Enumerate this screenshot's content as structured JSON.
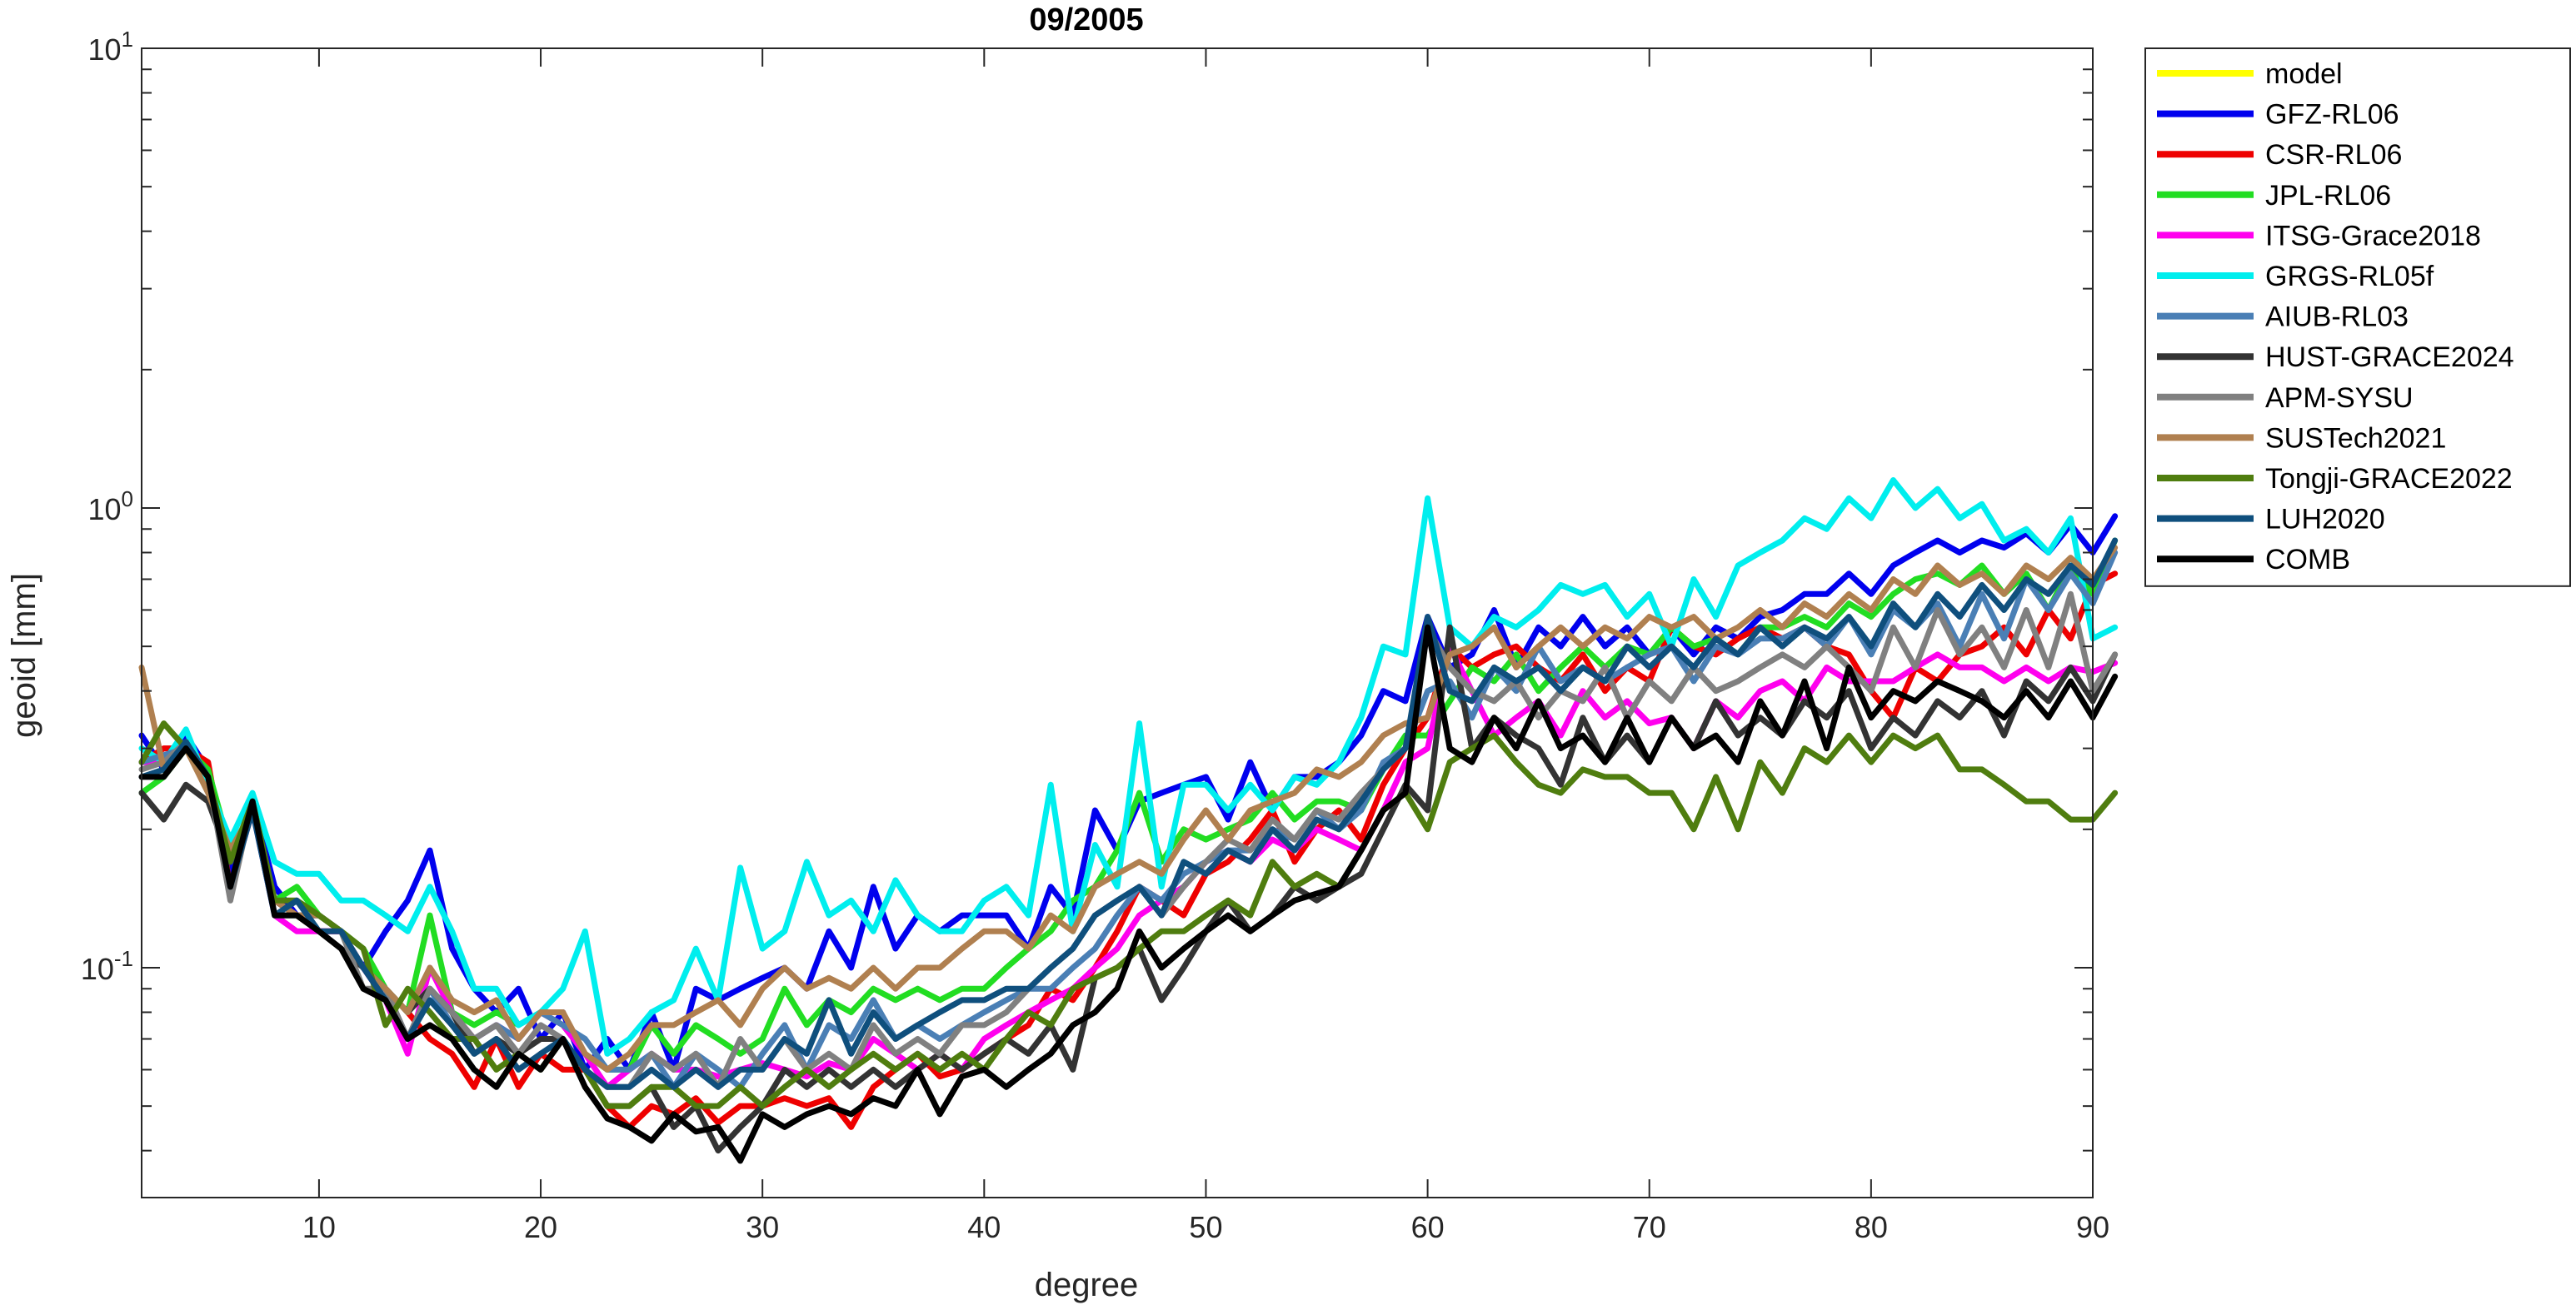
{
  "chart_data": {
    "type": "line",
    "title": "09/2005",
    "xlabel": "degree",
    "ylabel": "geoid [mm]",
    "xlim": [
      2,
      90
    ],
    "ylim": [
      0.03162,
      10
    ],
    "yscale": "log",
    "xticks": [
      10,
      20,
      30,
      40,
      50,
      60,
      70,
      80,
      90
    ],
    "xtick_labels": [
      "10",
      "20",
      "30",
      "40",
      "50",
      "60",
      "70",
      "80",
      "90"
    ],
    "yticks": [
      0.1,
      1,
      10
    ],
    "ytick_labels": [
      {
        "base": "10",
        "exp": "-1"
      },
      {
        "base": "10",
        "exp": "0"
      },
      {
        "base": "10",
        "exp": "1"
      }
    ],
    "grid": false,
    "legend_position": "outside-right",
    "x_start": 2,
    "series": [
      {
        "name": "model",
        "color": "#ffff00",
        "values": []
      },
      {
        "name": "GFZ-RL06",
        "color": "#0000ee",
        "values": [
          0.32,
          0.27,
          0.32,
          0.27,
          0.16,
          0.23,
          0.15,
          0.13,
          0.13,
          0.12,
          0.1,
          0.12,
          0.14,
          0.18,
          0.11,
          0.09,
          0.08,
          0.09,
          0.07,
          0.08,
          0.06,
          0.07,
          0.06,
          0.08,
          0.06,
          0.09,
          0.085,
          0.09,
          0.095,
          0.1,
          0.09,
          0.12,
          0.1,
          0.15,
          0.11,
          0.13,
          0.12,
          0.13,
          0.13,
          0.13,
          0.11,
          0.15,
          0.13,
          0.22,
          0.18,
          0.23,
          0.24,
          0.25,
          0.26,
          0.21,
          0.28,
          0.22,
          0.26,
          0.26,
          0.28,
          0.32,
          0.4,
          0.38,
          0.58,
          0.45,
          0.48,
          0.6,
          0.45,
          0.55,
          0.5,
          0.58,
          0.5,
          0.55,
          0.48,
          0.55,
          0.48,
          0.55,
          0.52,
          0.58,
          0.6,
          0.65,
          0.65,
          0.72,
          0.65,
          0.75,
          0.8,
          0.85,
          0.8,
          0.85,
          0.82,
          0.88,
          0.8,
          0.92,
          0.8,
          0.96
        ]
      },
      {
        "name": "CSR-RL06",
        "color": "#ee0000",
        "values": [
          0.28,
          0.3,
          0.3,
          0.28,
          0.15,
          0.22,
          0.14,
          0.13,
          0.12,
          0.12,
          0.1,
          0.09,
          0.08,
          0.07,
          0.065,
          0.055,
          0.07,
          0.055,
          0.065,
          0.06,
          0.06,
          0.05,
          0.045,
          0.05,
          0.048,
          0.052,
          0.046,
          0.05,
          0.05,
          0.052,
          0.05,
          0.052,
          0.045,
          0.055,
          0.06,
          0.065,
          0.058,
          0.06,
          0.065,
          0.07,
          0.075,
          0.09,
          0.085,
          0.1,
          0.12,
          0.15,
          0.14,
          0.13,
          0.16,
          0.17,
          0.19,
          0.22,
          0.17,
          0.2,
          0.22,
          0.19,
          0.25,
          0.3,
          0.35,
          0.5,
          0.45,
          0.48,
          0.5,
          0.45,
          0.42,
          0.48,
          0.4,
          0.45,
          0.42,
          0.55,
          0.5,
          0.48,
          0.52,
          0.55,
          0.52,
          0.55,
          0.5,
          0.48,
          0.4,
          0.35,
          0.45,
          0.42,
          0.48,
          0.5,
          0.55,
          0.48,
          0.6,
          0.52,
          0.68,
          0.72
        ]
      },
      {
        "name": "JPL-RL06",
        "color": "#22dd22",
        "values": [
          0.24,
          0.26,
          0.3,
          0.27,
          0.18,
          0.22,
          0.14,
          0.15,
          0.13,
          0.12,
          0.11,
          0.09,
          0.08,
          0.13,
          0.08,
          0.075,
          0.08,
          0.075,
          0.08,
          0.075,
          0.065,
          0.06,
          0.06,
          0.075,
          0.065,
          0.075,
          0.07,
          0.065,
          0.07,
          0.09,
          0.075,
          0.085,
          0.08,
          0.09,
          0.085,
          0.09,
          0.085,
          0.09,
          0.09,
          0.1,
          0.11,
          0.12,
          0.14,
          0.15,
          0.18,
          0.24,
          0.17,
          0.2,
          0.19,
          0.2,
          0.21,
          0.24,
          0.21,
          0.23,
          0.23,
          0.22,
          0.27,
          0.32,
          0.32,
          0.38,
          0.45,
          0.42,
          0.48,
          0.4,
          0.45,
          0.5,
          0.45,
          0.5,
          0.48,
          0.55,
          0.5,
          0.52,
          0.48,
          0.55,
          0.55,
          0.58,
          0.55,
          0.62,
          0.58,
          0.65,
          0.7,
          0.72,
          0.68,
          0.75,
          0.65,
          0.72,
          0.6,
          0.75,
          0.65,
          0.85
        ]
      },
      {
        "name": "ITSG-Grace2018",
        "color": "#ff00ee",
        "values": [
          0.28,
          0.28,
          0.3,
          0.25,
          0.15,
          0.22,
          0.13,
          0.12,
          0.12,
          0.12,
          0.1,
          0.085,
          0.065,
          0.1,
          0.08,
          0.07,
          0.075,
          0.07,
          0.08,
          0.075,
          0.065,
          0.055,
          0.06,
          0.065,
          0.06,
          0.06,
          0.058,
          0.06,
          0.062,
          0.06,
          0.058,
          0.062,
          0.06,
          0.07,
          0.065,
          0.06,
          0.065,
          0.06,
          0.07,
          0.075,
          0.08,
          0.085,
          0.09,
          0.1,
          0.11,
          0.13,
          0.14,
          0.15,
          0.17,
          0.18,
          0.17,
          0.19,
          0.18,
          0.2,
          0.19,
          0.18,
          0.22,
          0.28,
          0.3,
          0.5,
          0.4,
          0.32,
          0.35,
          0.38,
          0.32,
          0.4,
          0.35,
          0.38,
          0.34,
          0.35,
          0.3,
          0.38,
          0.35,
          0.4,
          0.42,
          0.38,
          0.45,
          0.42,
          0.42,
          0.42,
          0.45,
          0.48,
          0.45,
          0.45,
          0.42,
          0.45,
          0.42,
          0.45,
          0.44,
          0.46
        ]
      },
      {
        "name": "GRGS-RL05f",
        "color": "#00eeee",
        "values": [
          0.3,
          0.28,
          0.33,
          0.25,
          0.19,
          0.24,
          0.17,
          0.16,
          0.16,
          0.14,
          0.14,
          0.13,
          0.12,
          0.15,
          0.12,
          0.09,
          0.09,
          0.075,
          0.08,
          0.09,
          0.12,
          0.065,
          0.07,
          0.08,
          0.085,
          0.11,
          0.085,
          0.165,
          0.11,
          0.12,
          0.17,
          0.13,
          0.14,
          0.12,
          0.155,
          0.13,
          0.12,
          0.12,
          0.14,
          0.15,
          0.13,
          0.25,
          0.12,
          0.185,
          0.15,
          0.34,
          0.15,
          0.25,
          0.25,
          0.22,
          0.25,
          0.22,
          0.26,
          0.25,
          0.28,
          0.35,
          0.5,
          0.48,
          1.05,
          0.55,
          0.5,
          0.58,
          0.55,
          0.6,
          0.68,
          0.65,
          0.68,
          0.58,
          0.65,
          0.5,
          0.7,
          0.58,
          0.75,
          0.8,
          0.85,
          0.95,
          0.9,
          1.05,
          0.95,
          1.15,
          1.0,
          1.1,
          0.95,
          1.02,
          0.85,
          0.9,
          0.8,
          0.95,
          0.52,
          0.55
        ]
      },
      {
        "name": "AIUB-RL03",
        "color": "#4a7fb5",
        "values": [
          0.28,
          0.29,
          0.3,
          0.26,
          0.15,
          0.22,
          0.13,
          0.13,
          0.13,
          0.12,
          0.1,
          0.09,
          0.07,
          0.09,
          0.075,
          0.07,
          0.075,
          0.07,
          0.08,
          0.075,
          0.07,
          0.06,
          0.06,
          0.065,
          0.055,
          0.065,
          0.06,
          0.055,
          0.065,
          0.075,
          0.06,
          0.075,
          0.07,
          0.085,
          0.07,
          0.075,
          0.07,
          0.075,
          0.08,
          0.085,
          0.09,
          0.09,
          0.1,
          0.11,
          0.13,
          0.15,
          0.14,
          0.16,
          0.17,
          0.18,
          0.18,
          0.2,
          0.19,
          0.22,
          0.2,
          0.22,
          0.28,
          0.3,
          0.4,
          0.42,
          0.35,
          0.45,
          0.4,
          0.5,
          0.42,
          0.45,
          0.42,
          0.45,
          0.48,
          0.5,
          0.42,
          0.5,
          0.48,
          0.52,
          0.52,
          0.55,
          0.5,
          0.58,
          0.48,
          0.6,
          0.55,
          0.62,
          0.5,
          0.65,
          0.52,
          0.7,
          0.6,
          0.72,
          0.62,
          0.8
        ]
      },
      {
        "name": "HUST-GRACE2024",
        "color": "#333333",
        "values": [
          0.24,
          0.21,
          0.25,
          0.23,
          0.17,
          0.23,
          0.14,
          0.13,
          0.12,
          0.11,
          0.1,
          0.09,
          0.08,
          0.09,
          0.08,
          0.065,
          0.07,
          0.065,
          0.07,
          0.07,
          0.06,
          0.05,
          0.05,
          0.055,
          0.045,
          0.05,
          0.04,
          0.045,
          0.05,
          0.06,
          0.055,
          0.06,
          0.055,
          0.06,
          0.055,
          0.06,
          0.065,
          0.06,
          0.065,
          0.07,
          0.065,
          0.075,
          0.06,
          0.095,
          0.1,
          0.11,
          0.085,
          0.1,
          0.12,
          0.14,
          0.12,
          0.13,
          0.15,
          0.14,
          0.15,
          0.16,
          0.2,
          0.25,
          0.22,
          0.55,
          0.3,
          0.35,
          0.32,
          0.3,
          0.25,
          0.35,
          0.28,
          0.32,
          0.28,
          0.35,
          0.3,
          0.38,
          0.32,
          0.35,
          0.32,
          0.38,
          0.35,
          0.4,
          0.3,
          0.35,
          0.32,
          0.38,
          0.35,
          0.4,
          0.32,
          0.42,
          0.38,
          0.45,
          0.38,
          0.48
        ]
      },
      {
        "name": "APM-SYSU",
        "color": "#808080",
        "values": [
          0.27,
          0.28,
          0.31,
          0.26,
          0.14,
          0.23,
          0.13,
          0.13,
          0.13,
          0.12,
          0.09,
          0.09,
          0.07,
          0.09,
          0.08,
          0.07,
          0.075,
          0.065,
          0.075,
          0.07,
          0.06,
          0.055,
          0.055,
          0.065,
          0.06,
          0.065,
          0.055,
          0.07,
          0.06,
          0.07,
          0.06,
          0.065,
          0.06,
          0.075,
          0.065,
          0.07,
          0.065,
          0.075,
          0.075,
          0.08,
          0.09,
          0.1,
          0.11,
          0.13,
          0.14,
          0.15,
          0.13,
          0.15,
          0.17,
          0.19,
          0.18,
          0.21,
          0.19,
          0.22,
          0.21,
          0.24,
          0.27,
          0.3,
          0.55,
          0.45,
          0.4,
          0.38,
          0.42,
          0.35,
          0.4,
          0.38,
          0.45,
          0.35,
          0.42,
          0.38,
          0.45,
          0.4,
          0.42,
          0.45,
          0.48,
          0.45,
          0.5,
          0.45,
          0.4,
          0.55,
          0.45,
          0.6,
          0.48,
          0.55,
          0.45,
          0.6,
          0.45,
          0.65,
          0.4,
          0.48
        ]
      },
      {
        "name": "SUSTech2021",
        "color": "#b08050",
        "values": [
          0.45,
          0.27,
          0.3,
          0.24,
          0.18,
          0.22,
          0.14,
          0.13,
          0.13,
          0.12,
          0.1,
          0.09,
          0.08,
          0.1,
          0.085,
          0.08,
          0.085,
          0.07,
          0.08,
          0.08,
          0.065,
          0.06,
          0.065,
          0.075,
          0.075,
          0.08,
          0.085,
          0.075,
          0.09,
          0.1,
          0.09,
          0.095,
          0.09,
          0.1,
          0.09,
          0.1,
          0.1,
          0.11,
          0.12,
          0.12,
          0.11,
          0.13,
          0.12,
          0.15,
          0.16,
          0.17,
          0.16,
          0.19,
          0.22,
          0.19,
          0.22,
          0.23,
          0.24,
          0.27,
          0.26,
          0.28,
          0.32,
          0.34,
          0.35,
          0.48,
          0.5,
          0.55,
          0.45,
          0.5,
          0.55,
          0.5,
          0.55,
          0.52,
          0.58,
          0.55,
          0.58,
          0.52,
          0.55,
          0.6,
          0.55,
          0.62,
          0.58,
          0.65,
          0.6,
          0.7,
          0.65,
          0.75,
          0.68,
          0.72,
          0.65,
          0.75,
          0.7,
          0.78,
          0.7,
          0.82
        ]
      },
      {
        "name": "Tongji-GRACE2022",
        "color": "#4f7d0f",
        "values": [
          0.28,
          0.34,
          0.3,
          0.26,
          0.17,
          0.23,
          0.14,
          0.14,
          0.13,
          0.12,
          0.11,
          0.075,
          0.09,
          0.08,
          0.07,
          0.07,
          0.06,
          0.065,
          0.06,
          0.07,
          0.06,
          0.05,
          0.05,
          0.055,
          0.055,
          0.05,
          0.05,
          0.055,
          0.05,
          0.055,
          0.06,
          0.055,
          0.06,
          0.065,
          0.06,
          0.065,
          0.06,
          0.065,
          0.06,
          0.07,
          0.08,
          0.075,
          0.09,
          0.095,
          0.1,
          0.11,
          0.12,
          0.12,
          0.13,
          0.14,
          0.13,
          0.17,
          0.15,
          0.16,
          0.15,
          0.18,
          0.22,
          0.24,
          0.2,
          0.28,
          0.3,
          0.32,
          0.28,
          0.25,
          0.24,
          0.27,
          0.26,
          0.26,
          0.24,
          0.24,
          0.2,
          0.26,
          0.2,
          0.28,
          0.24,
          0.3,
          0.28,
          0.32,
          0.28,
          0.32,
          0.3,
          0.32,
          0.27,
          0.27,
          0.25,
          0.23,
          0.23,
          0.21,
          0.21,
          0.24
        ]
      },
      {
        "name": "LUH2020",
        "color": "#0f4f7d",
        "values": [
          0.26,
          0.27,
          0.31,
          0.26,
          0.15,
          0.22,
          0.13,
          0.14,
          0.12,
          0.12,
          0.1,
          0.085,
          0.07,
          0.085,
          0.075,
          0.065,
          0.07,
          0.06,
          0.065,
          0.07,
          0.06,
          0.055,
          0.055,
          0.06,
          0.055,
          0.06,
          0.055,
          0.06,
          0.06,
          0.07,
          0.065,
          0.085,
          0.065,
          0.08,
          0.07,
          0.075,
          0.08,
          0.085,
          0.085,
          0.09,
          0.09,
          0.1,
          0.11,
          0.13,
          0.14,
          0.15,
          0.13,
          0.17,
          0.16,
          0.18,
          0.17,
          0.2,
          0.18,
          0.21,
          0.2,
          0.23,
          0.27,
          0.3,
          0.58,
          0.4,
          0.38,
          0.45,
          0.42,
          0.45,
          0.4,
          0.45,
          0.42,
          0.5,
          0.45,
          0.5,
          0.45,
          0.52,
          0.48,
          0.55,
          0.5,
          0.55,
          0.52,
          0.58,
          0.5,
          0.62,
          0.55,
          0.65,
          0.58,
          0.68,
          0.6,
          0.7,
          0.65,
          0.75,
          0.68,
          0.85
        ]
      },
      {
        "name": "COMB",
        "color": "#000000",
        "values": [
          0.26,
          0.26,
          0.3,
          0.26,
          0.15,
          0.23,
          0.13,
          0.13,
          0.12,
          0.11,
          0.09,
          0.085,
          0.07,
          0.075,
          0.07,
          0.06,
          0.055,
          0.065,
          0.06,
          0.07,
          0.055,
          0.047,
          0.045,
          0.042,
          0.048,
          0.044,
          0.045,
          0.038,
          0.048,
          0.045,
          0.048,
          0.05,
          0.048,
          0.052,
          0.05,
          0.06,
          0.048,
          0.058,
          0.06,
          0.055,
          0.06,
          0.065,
          0.075,
          0.08,
          0.09,
          0.12,
          0.1,
          0.11,
          0.12,
          0.13,
          0.12,
          0.13,
          0.14,
          0.145,
          0.15,
          0.18,
          0.22,
          0.24,
          0.55,
          0.3,
          0.28,
          0.35,
          0.3,
          0.38,
          0.3,
          0.32,
          0.28,
          0.35,
          0.28,
          0.35,
          0.3,
          0.32,
          0.28,
          0.38,
          0.32,
          0.42,
          0.3,
          0.45,
          0.35,
          0.4,
          0.38,
          0.42,
          0.4,
          0.38,
          0.35,
          0.4,
          0.35,
          0.42,
          0.35,
          0.43
        ]
      }
    ]
  }
}
